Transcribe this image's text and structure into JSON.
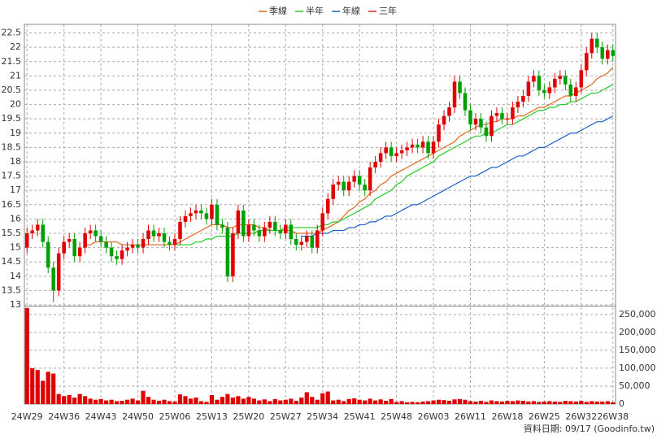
{
  "chart_data": {
    "type": "candlestick",
    "categories": [
      "24W29",
      null,
      null,
      null,
      null,
      null,
      null,
      "24W36",
      null,
      null,
      null,
      null,
      null,
      null,
      "24W43",
      null,
      null,
      null,
      null,
      null,
      null,
      "24W50",
      null,
      null,
      null,
      null,
      null,
      null,
      "25W06",
      null,
      null,
      null,
      null,
      null,
      null,
      "25W13",
      null,
      null,
      null,
      null,
      null,
      null,
      "25W20",
      null,
      null,
      null,
      null,
      null,
      null,
      "25W27",
      null,
      null,
      null,
      null,
      null,
      null,
      "25W34",
      null,
      null,
      null,
      null,
      null,
      null,
      "25W41",
      null,
      null,
      null,
      null,
      null,
      null,
      "25W48",
      null,
      null,
      null,
      null,
      null,
      null,
      "26W03",
      null,
      null,
      null,
      null,
      null,
      null,
      "26W11",
      null,
      null,
      null,
      null,
      null,
      null,
      "26W18",
      null,
      null,
      null,
      null,
      null,
      null,
      "26W25",
      null,
      null,
      null,
      null,
      null,
      null,
      "26W32",
      null,
      null,
      null,
      null,
      null,
      "26W38"
    ],
    "open": [
      15.0,
      15.5,
      15.6,
      15.8,
      15.2,
      14.3,
      13.5,
      14.8,
      15.2,
      15.3,
      14.7,
      15.0,
      15.5,
      15.6,
      15.4,
      15.2,
      15.0,
      14.7,
      14.6,
      14.9,
      15.0,
      15.1,
      15.0,
      15.3,
      15.6,
      15.4,
      15.5,
      15.2,
      15.1,
      15.3,
      15.9,
      16.1,
      16.2,
      16.3,
      16.2,
      16.0,
      16.5,
      15.8,
      15.7,
      14.0,
      15.5,
      16.3,
      15.4,
      15.8,
      15.6,
      15.4,
      15.7,
      15.9,
      15.6,
      15.5,
      15.8,
      15.3,
      15.1,
      15.2,
      15.4,
      15.0,
      15.6,
      16.2,
      16.7,
      17.2,
      17.3,
      17.0,
      17.3,
      17.5,
      17.2,
      17.0,
      17.8,
      18.0,
      18.3,
      18.5,
      18.2,
      18.3,
      18.4,
      18.5,
      18.6,
      18.5,
      18.7,
      18.3,
      18.7,
      19.3,
      19.6,
      19.9,
      20.8,
      20.4,
      19.8,
      19.3,
      19.5,
      19.2,
      18.9,
      19.6,
      19.7,
      19.5,
      19.5,
      19.9,
      20.1,
      20.3,
      20.8,
      21.0,
      20.5,
      20.4,
      20.6,
      20.9,
      21.0,
      20.7,
      20.3,
      20.6,
      21.2,
      21.8,
      22.3,
      22.0,
      21.6,
      21.9
    ],
    "high": [
      15.7,
      15.8,
      16.0,
      16.0,
      15.4,
      14.5,
      15.0,
      15.4,
      15.5,
      15.5,
      15.2,
      15.7,
      15.8,
      15.8,
      15.6,
      15.4,
      15.2,
      14.9,
      15.1,
      15.2,
      15.3,
      15.3,
      15.5,
      15.8,
      15.8,
      15.7,
      15.7,
      15.4,
      15.5,
      16.1,
      16.3,
      16.4,
      16.5,
      16.5,
      16.4,
      16.7,
      16.7,
      16.0,
      15.9,
      15.7,
      16.5,
      16.5,
      16.0,
      16.0,
      15.8,
      15.9,
      16.1,
      16.1,
      15.8,
      16.0,
      16.0,
      15.5,
      15.4,
      15.6,
      15.6,
      15.8,
      16.4,
      16.9,
      17.4,
      17.5,
      17.5,
      17.5,
      17.7,
      17.7,
      17.4,
      18.0,
      18.2,
      18.5,
      18.7,
      18.7,
      18.5,
      18.6,
      18.7,
      18.8,
      18.8,
      18.9,
      18.9,
      18.9,
      19.5,
      19.8,
      20.1,
      21.0,
      21.0,
      20.6,
      20.0,
      19.7,
      19.7,
      19.4,
      19.8,
      19.9,
      19.9,
      19.7,
      20.1,
      20.3,
      20.5,
      21.0,
      21.2,
      21.2,
      20.7,
      20.8,
      21.1,
      21.2,
      21.2,
      20.9,
      20.8,
      21.4,
      22.0,
      22.5,
      22.5,
      22.2,
      22.1,
      22.1
    ],
    "low": [
      14.8,
      15.3,
      15.4,
      15.0,
      14.1,
      13.1,
      13.3,
      14.6,
      15.0,
      14.5,
      14.5,
      14.8,
      15.3,
      15.2,
      15.0,
      14.8,
      14.5,
      14.4,
      14.4,
      14.7,
      14.8,
      14.8,
      14.8,
      15.1,
      15.2,
      15.2,
      15.0,
      14.9,
      14.9,
      15.1,
      15.7,
      15.9,
      16.0,
      16.0,
      15.8,
      15.8,
      15.6,
      15.5,
      13.8,
      13.8,
      15.3,
      15.2,
      15.2,
      15.4,
      15.2,
      15.2,
      15.5,
      15.4,
      15.3,
      15.3,
      15.1,
      14.9,
      14.9,
      15.0,
      14.8,
      14.8,
      15.4,
      16.0,
      16.5,
      17.0,
      16.8,
      16.8,
      17.1,
      17.0,
      16.8,
      16.8,
      17.6,
      17.8,
      18.1,
      18.0,
      18.0,
      18.1,
      18.2,
      18.3,
      18.3,
      18.3,
      18.1,
      18.1,
      18.5,
      19.1,
      19.4,
      19.7,
      20.2,
      19.6,
      19.1,
      19.1,
      19.0,
      18.7,
      18.7,
      19.4,
      19.3,
      19.3,
      19.3,
      19.7,
      19.9,
      20.1,
      20.6,
      20.3,
      20.2,
      20.2,
      20.4,
      20.7,
      20.5,
      20.1,
      20.1,
      20.4,
      21.0,
      21.6,
      21.8,
      21.4,
      21.4,
      21.5
    ],
    "close": [
      15.5,
      15.6,
      15.8,
      15.2,
      14.3,
      13.5,
      14.8,
      15.2,
      15.3,
      14.7,
      15.0,
      15.5,
      15.6,
      15.4,
      15.2,
      15.0,
      14.7,
      14.6,
      14.9,
      15.0,
      15.1,
      15.0,
      15.3,
      15.6,
      15.4,
      15.5,
      15.2,
      15.1,
      15.3,
      15.9,
      16.1,
      16.2,
      16.3,
      16.2,
      16.0,
      16.5,
      15.8,
      15.7,
      14.0,
      15.5,
      16.3,
      15.4,
      15.8,
      15.6,
      15.4,
      15.7,
      15.9,
      15.6,
      15.5,
      15.8,
      15.3,
      15.1,
      15.2,
      15.4,
      15.0,
      15.6,
      16.2,
      16.7,
      17.2,
      17.3,
      17.0,
      17.3,
      17.5,
      17.2,
      17.0,
      17.8,
      18.0,
      18.3,
      18.5,
      18.2,
      18.3,
      18.4,
      18.5,
      18.6,
      18.5,
      18.7,
      18.3,
      18.7,
      19.3,
      19.6,
      19.9,
      20.8,
      20.4,
      19.8,
      19.3,
      19.5,
      19.2,
      18.9,
      19.6,
      19.7,
      19.5,
      19.5,
      19.9,
      20.1,
      20.3,
      20.8,
      21.0,
      20.5,
      20.4,
      20.6,
      20.9,
      21.0,
      20.7,
      20.3,
      20.6,
      21.2,
      21.8,
      22.3,
      22.0,
      21.6,
      21.9,
      21.7
    ],
    "up_color": "#e00000",
    "down_color": "#00a000",
    "ylim": [
      13,
      22.8
    ],
    "yticks": [
      13,
      13.5,
      14,
      14.5,
      15,
      15.5,
      16,
      16.5,
      17,
      17.5,
      18,
      18.5,
      19,
      19.5,
      20,
      20.5,
      21,
      21.5,
      22,
      22.5
    ],
    "series": [
      {
        "name": "季線",
        "color": "#e0661a",
        "values": [
          null,
          null,
          null,
          null,
          null,
          null,
          null,
          null,
          null,
          null,
          null,
          15.1,
          15.1,
          15.2,
          15.2,
          15.2,
          15.2,
          15.2,
          15.1,
          15.1,
          15.1,
          15.1,
          15.1,
          15.1,
          15.1,
          15.1,
          15.1,
          15.1,
          15.1,
          15.2,
          15.3,
          15.4,
          15.5,
          15.6,
          15.7,
          15.8,
          15.8,
          15.8,
          15.7,
          15.7,
          15.8,
          15.8,
          15.8,
          15.8,
          15.7,
          15.7,
          15.6,
          15.6,
          15.6,
          15.6,
          15.6,
          15.5,
          15.5,
          15.5,
          15.5,
          15.5,
          15.6,
          15.7,
          15.8,
          15.9,
          16.1,
          16.3,
          16.4,
          16.6,
          16.7,
          16.9,
          17.0,
          17.2,
          17.3,
          17.5,
          17.6,
          17.7,
          17.8,
          17.9,
          18.0,
          18.1,
          18.2,
          18.3,
          18.4,
          18.5,
          18.6,
          18.7,
          18.9,
          19.0,
          19.1,
          19.2,
          19.3,
          19.3,
          19.4,
          19.4,
          19.5,
          19.5,
          19.5,
          19.6,
          19.6,
          19.7,
          19.8,
          19.9,
          19.9,
          20.0,
          20.1,
          20.2,
          20.3,
          20.3,
          20.4,
          20.5,
          20.6,
          20.7,
          20.9,
          21.0,
          21.1,
          21.3
        ]
      },
      {
        "name": "半年",
        "color": "#22cc22",
        "values": [
          null,
          null,
          null,
          null,
          null,
          null,
          null,
          null,
          null,
          null,
          null,
          null,
          null,
          null,
          null,
          null,
          null,
          null,
          null,
          null,
          null,
          null,
          null,
          null,
          null,
          null,
          null,
          null,
          15.1,
          15.1,
          15.1,
          15.1,
          15.2,
          15.2,
          15.3,
          15.3,
          15.4,
          15.4,
          15.4,
          15.4,
          15.5,
          15.5,
          15.5,
          15.5,
          15.6,
          15.6,
          15.6,
          15.6,
          15.6,
          15.7,
          15.7,
          15.7,
          15.7,
          15.7,
          15.7,
          15.7,
          15.8,
          15.8,
          15.9,
          15.9,
          16.0,
          16.1,
          16.2,
          16.3,
          16.4,
          16.5,
          16.7,
          16.8,
          16.9,
          17.0,
          17.2,
          17.3,
          17.5,
          17.6,
          17.7,
          17.8,
          17.9,
          18.0,
          18.2,
          18.3,
          18.4,
          18.5,
          18.6,
          18.7,
          18.8,
          18.9,
          18.9,
          19.0,
          19.0,
          19.1,
          19.2,
          19.3,
          19.3,
          19.4,
          19.5,
          19.6,
          19.7,
          19.8,
          19.8,
          19.9,
          19.9,
          20.0,
          20.0,
          20.1,
          20.1,
          20.2,
          20.3,
          20.4,
          20.4,
          20.5,
          20.6,
          20.7
        ]
      },
      {
        "name": "年線",
        "color": "#1a5fc8",
        "values": [
          null,
          null,
          null,
          null,
          null,
          null,
          null,
          null,
          null,
          null,
          null,
          null,
          null,
          null,
          null,
          null,
          null,
          null,
          null,
          null,
          null,
          null,
          null,
          null,
          null,
          null,
          null,
          null,
          null,
          null,
          null,
          null,
          null,
          null,
          null,
          null,
          null,
          null,
          null,
          null,
          null,
          null,
          null,
          null,
          null,
          null,
          null,
          null,
          null,
          null,
          null,
          null,
          15.4,
          15.4,
          15.4,
          15.5,
          15.5,
          15.5,
          15.6,
          15.6,
          15.6,
          15.7,
          15.7,
          15.8,
          15.8,
          15.9,
          15.9,
          16.0,
          16.1,
          16.1,
          16.2,
          16.3,
          16.4,
          16.5,
          16.5,
          16.6,
          16.7,
          16.8,
          16.9,
          17.0,
          17.1,
          17.2,
          17.3,
          17.4,
          17.5,
          17.5,
          17.6,
          17.7,
          17.8,
          17.8,
          17.9,
          18.0,
          18.1,
          18.2,
          18.2,
          18.3,
          18.4,
          18.5,
          18.5,
          18.6,
          18.7,
          18.8,
          18.9,
          19.0,
          19.0,
          19.1,
          19.2,
          19.3,
          19.4,
          19.4,
          19.5,
          19.6
        ]
      },
      {
        "name": "三年",
        "color": "#e02020",
        "values": [
          null,
          null,
          null,
          null,
          null,
          null,
          null,
          null,
          null,
          null,
          null,
          null,
          null,
          null,
          null,
          null,
          null,
          null,
          null,
          null,
          null,
          null,
          null,
          null,
          null,
          null,
          null,
          null,
          null,
          null,
          null,
          null,
          null,
          null,
          null,
          null,
          null,
          null,
          null,
          null,
          null,
          null,
          null,
          null,
          null,
          null,
          null,
          null,
          null,
          null,
          null,
          null,
          null,
          null,
          null,
          null,
          null,
          null,
          null,
          null,
          null,
          null,
          null,
          null,
          null,
          null,
          null,
          null,
          null,
          null,
          null,
          null,
          null,
          null,
          null,
          null,
          null,
          null,
          null,
          null,
          null,
          null,
          null,
          null,
          null,
          null,
          null,
          null,
          null,
          null,
          null,
          null,
          null,
          null,
          null,
          null,
          null,
          null,
          null,
          null,
          null,
          null,
          null,
          null,
          null,
          null,
          null,
          null,
          null,
          null,
          null,
          null
        ]
      }
    ],
    "volume": {
      "color": "#e00000",
      "values": [
        268000,
        100000,
        95000,
        65000,
        90000,
        85000,
        28000,
        22000,
        25000,
        18000,
        28000,
        22000,
        15000,
        12000,
        14000,
        10000,
        12000,
        8000,
        9000,
        12000,
        15000,
        10000,
        37000,
        20000,
        12000,
        9000,
        12000,
        8000,
        7000,
        27000,
        22000,
        15000,
        18000,
        8000,
        6000,
        25000,
        12000,
        20000,
        28000,
        18000,
        22000,
        15000,
        20000,
        15000,
        10000,
        13000,
        8000,
        14000,
        10000,
        12000,
        15000,
        9000,
        18000,
        33000,
        20000,
        12000,
        30000,
        35000,
        10000,
        12000,
        8000,
        14000,
        16000,
        12000,
        10000,
        15000,
        10000,
        13000,
        9000,
        14000,
        6000,
        8000,
        5000,
        6000,
        5000,
        7000,
        8000,
        10000,
        12000,
        11000,
        9000,
        13000,
        14000,
        12000,
        8000,
        7000,
        9000,
        6000,
        10000,
        8000,
        7000,
        9000,
        8000,
        10000,
        9000,
        7000,
        8000,
        6000,
        7000,
        8000,
        7000,
        6000,
        9000,
        8000,
        7000,
        9000,
        6000,
        8000,
        7000,
        7000,
        8000,
        5000
      ],
      "ylim": [
        0,
        270000
      ],
      "yticks": [
        0,
        {
          "value": 50000,
          "label": "50,000"
        },
        {
          "value": 100000,
          "label": "100,000"
        },
        {
          "value": 150000,
          "label": "150,000"
        },
        {
          "value": 200000,
          "label": "200,000"
        },
        {
          "value": 250000,
          "label": "250,000"
        }
      ]
    },
    "grid": true,
    "footer": "資料日期: 09/17  (Goodinfo.tw)"
  }
}
